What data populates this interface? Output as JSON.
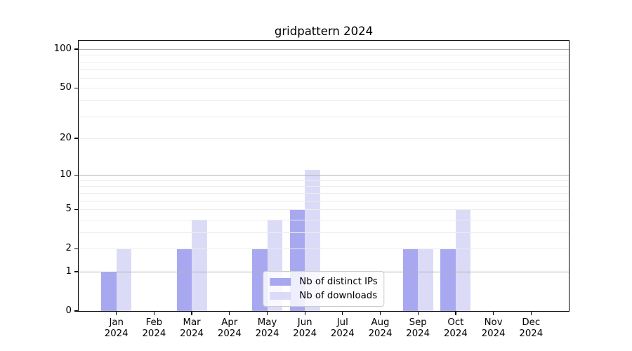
{
  "chart_data": {
    "type": "bar",
    "title": "gridpattern 2024",
    "categories": [
      "Jan 2024",
      "Feb 2024",
      "Mar 2024",
      "Apr 2024",
      "May 2024",
      "Jun 2024",
      "Jul 2024",
      "Aug 2024",
      "Sep 2024",
      "Oct 2024",
      "Nov 2024",
      "Dec 2024"
    ],
    "series": [
      {
        "name": "Nb of distinct IPs",
        "color": "#a8a8f0",
        "values": [
          1,
          0,
          2,
          0,
          2,
          5,
          0,
          0,
          2,
          2,
          0,
          0
        ]
      },
      {
        "name": "Nb of downloads",
        "color": "#dbdbf8",
        "values": [
          2,
          0,
          4,
          0,
          4,
          11,
          0,
          0,
          2,
          5,
          0,
          0
        ]
      }
    ],
    "xlabel": "",
    "ylabel": "",
    "yscale": "log1p",
    "ylim": [
      0,
      116.2
    ],
    "yticks": [
      0,
      1,
      2,
      5,
      10,
      20,
      50,
      100
    ],
    "major_gridlines": [
      1,
      10,
      100
    ],
    "minor_gridlines": [
      2,
      3,
      4,
      5,
      6,
      7,
      8,
      9,
      20,
      30,
      40,
      50,
      60,
      70,
      80,
      90
    ],
    "grid": true,
    "grid_above_bars": true,
    "legend_position": "lower center",
    "colors": {
      "minor_grid": "#ececec",
      "major_grid": "#b0b0b0",
      "spine": "#000000",
      "text": "#000000",
      "background": "#ffffff"
    }
  }
}
